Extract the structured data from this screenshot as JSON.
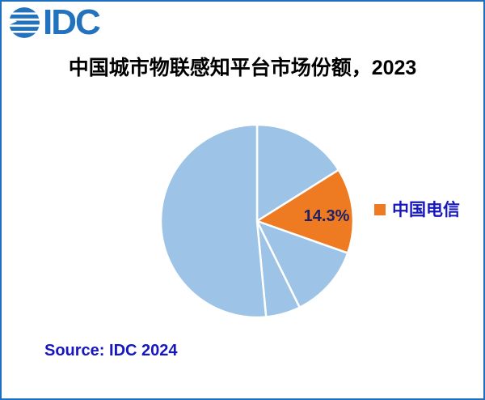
{
  "logo": {
    "text": "IDC",
    "icon": "globe-icon"
  },
  "title": {
    "text": "中国城市物联感知平台市场份额，2023"
  },
  "legend": [
    {
      "label": "中国电信",
      "color": "#EE7B22"
    }
  ],
  "source": {
    "text": "Source: IDC 2024"
  },
  "colors": {
    "border_blue": "#1F6FC0",
    "logo_blue": "#2272BE",
    "pie_blue": "#9DC3E6",
    "pie_orange": "#EE7B22",
    "label_navy": "#1F2168",
    "accent_text_blue": "#1717BE",
    "background": "#FFFFFF"
  },
  "chart_data": {
    "type": "pie",
    "title": "中国城市物联感知平台市场份额，2023",
    "unit": "% market share",
    "start_angle_deg": 0,
    "direction": "clockwise",
    "divider_color": "#FFFFFF",
    "legend_position": "right",
    "labeled_slice": "中国电信",
    "slices": [
      {
        "name": "",
        "value": 16.1,
        "color": "#9DC3E6",
        "label": ""
      },
      {
        "name": "中国电信",
        "value": 14.3,
        "color": "#EE7B22",
        "label": "14.3%"
      },
      {
        "name": "",
        "value": 12.3,
        "color": "#9DC3E6",
        "label": ""
      },
      {
        "name": "",
        "value": 5.8,
        "color": "#9DC3E6",
        "label": ""
      },
      {
        "name": "",
        "value": 51.5,
        "color": "#9DC3E6",
        "label": ""
      }
    ]
  }
}
